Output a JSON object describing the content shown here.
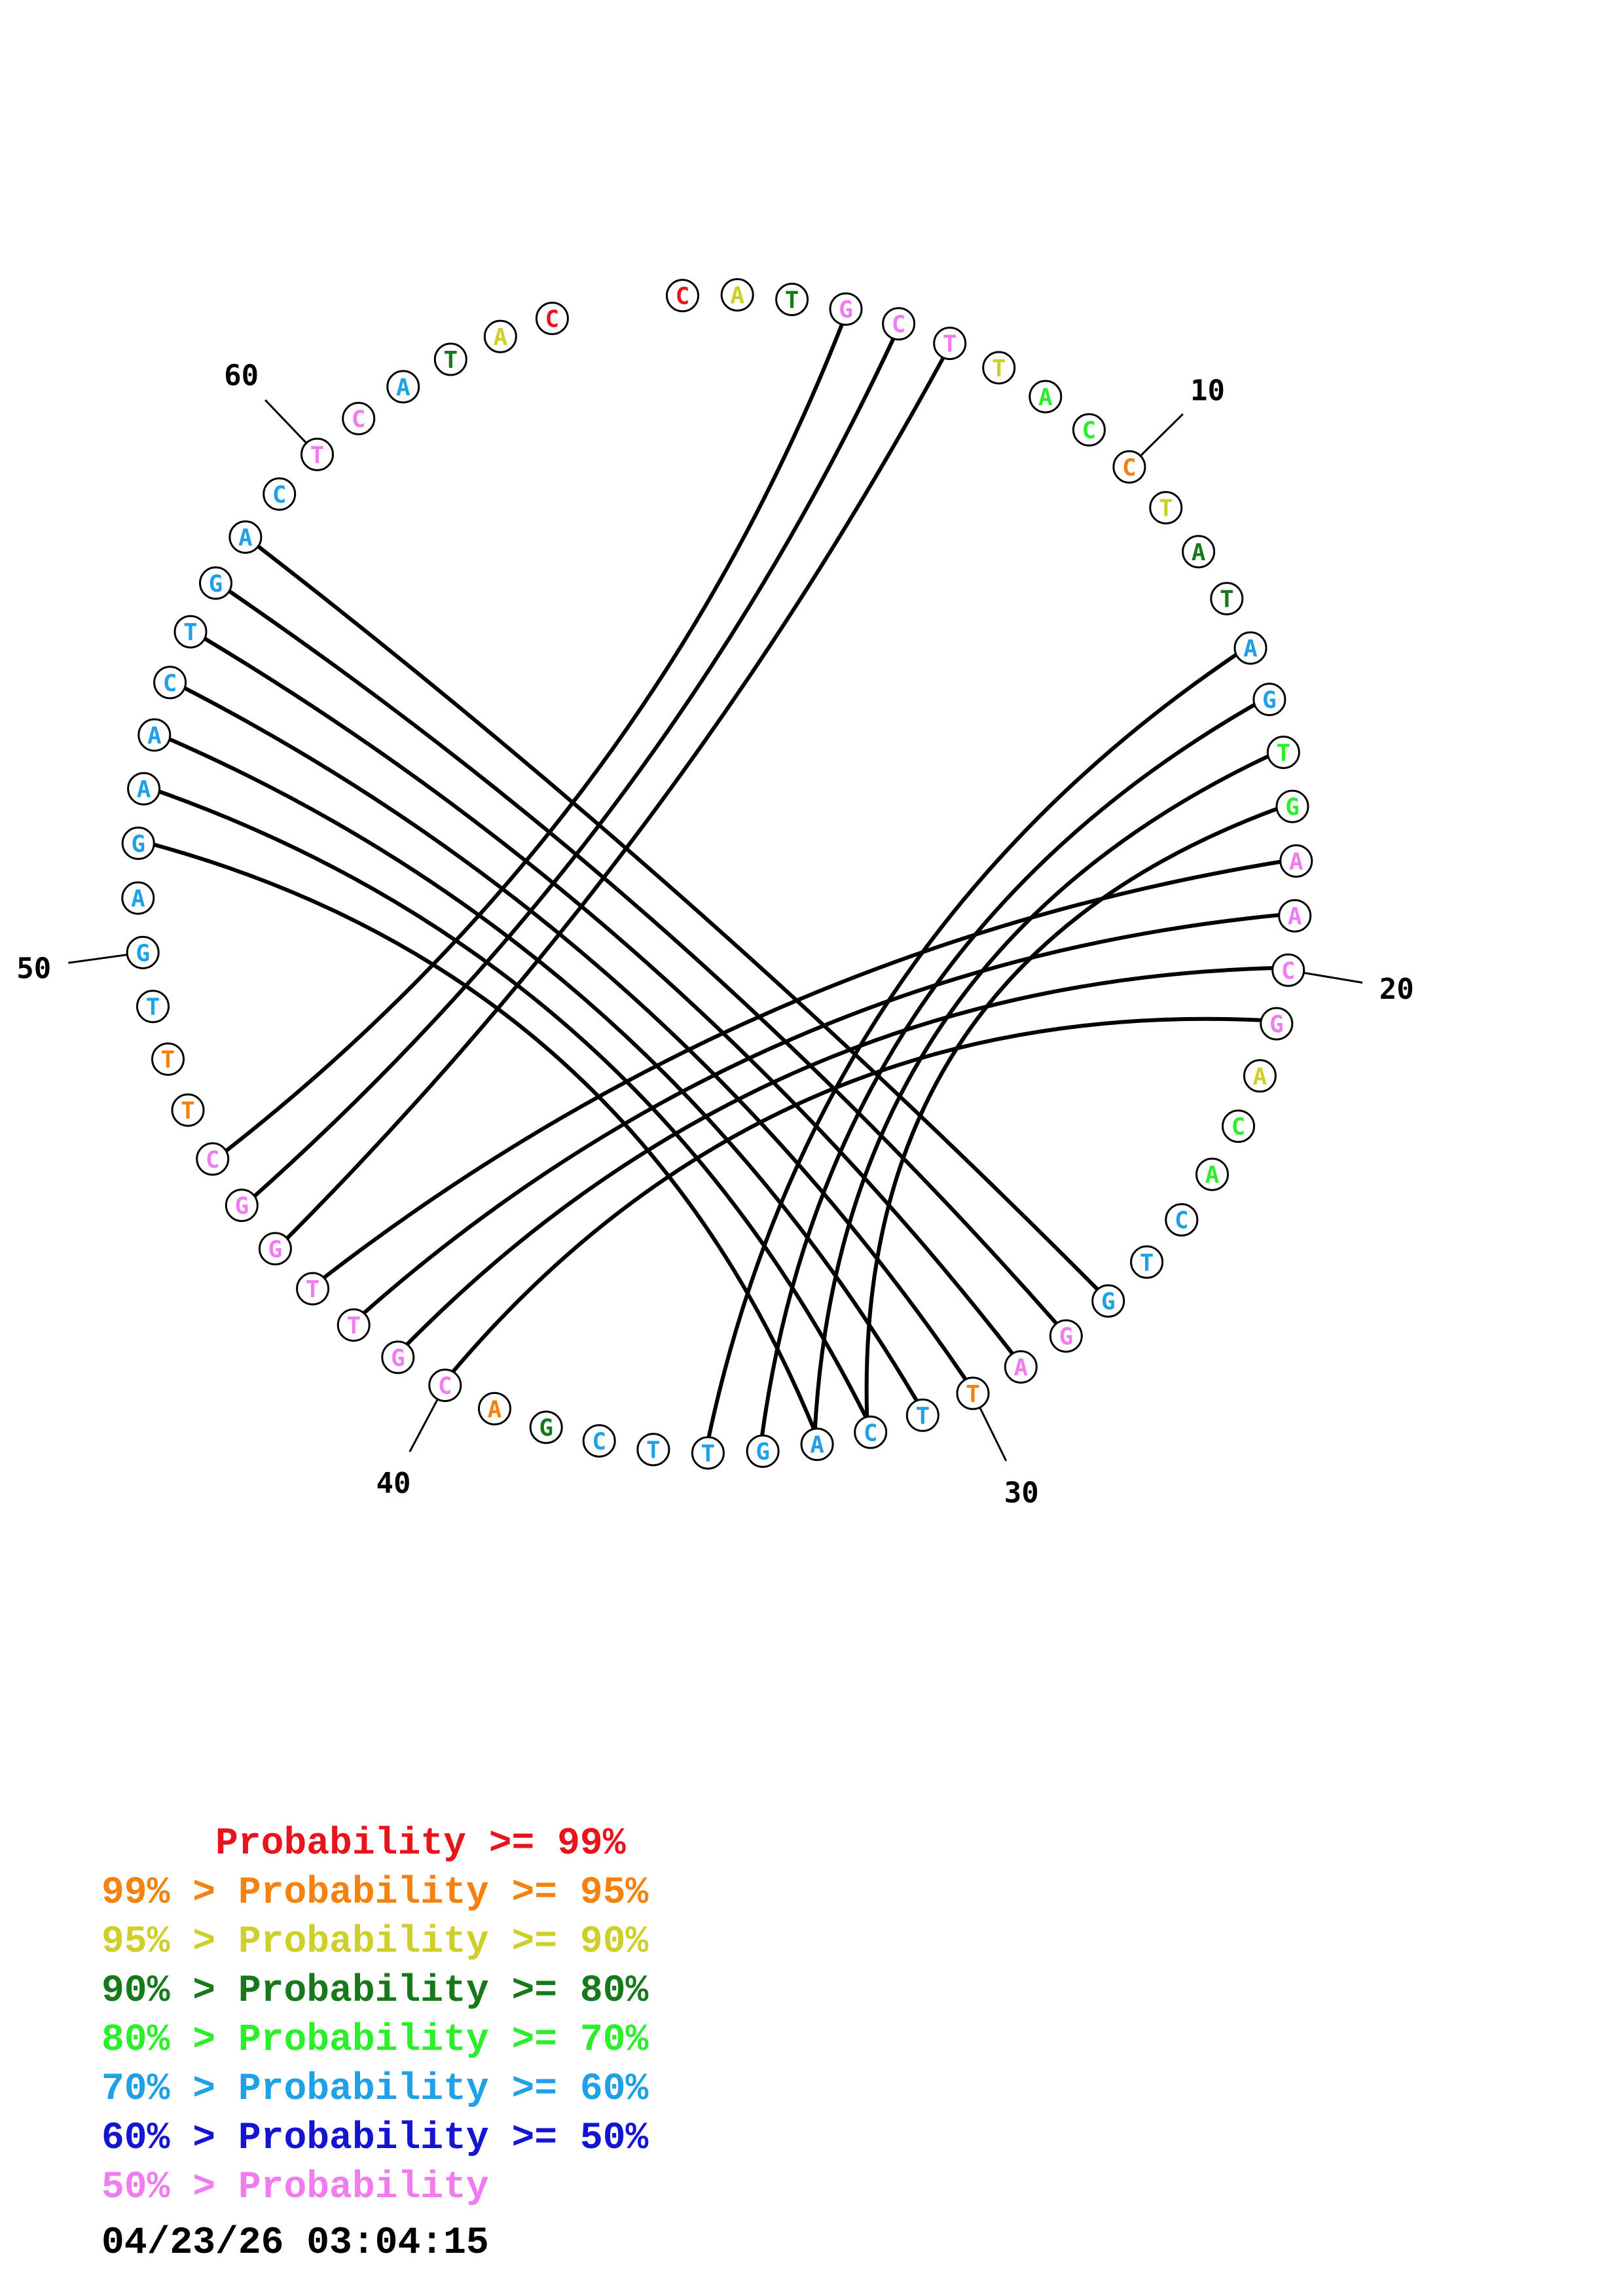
{
  "sequence": [
    {
      "base": "C",
      "level": 0
    },
    {
      "base": "A",
      "level": 2
    },
    {
      "base": "T",
      "level": 3
    },
    {
      "base": "G",
      "level": 7
    },
    {
      "base": "C",
      "level": 7
    },
    {
      "base": "T",
      "level": 7
    },
    {
      "base": "T",
      "level": 2
    },
    {
      "base": "A",
      "level": 4
    },
    {
      "base": "C",
      "level": 4
    },
    {
      "base": "C",
      "level": 1
    },
    {
      "base": "T",
      "level": 2
    },
    {
      "base": "A",
      "level": 3
    },
    {
      "base": "T",
      "level": 3
    },
    {
      "base": "A",
      "level": 5
    },
    {
      "base": "G",
      "level": 5
    },
    {
      "base": "T",
      "level": 4
    },
    {
      "base": "G",
      "level": 4
    },
    {
      "base": "A",
      "level": 7
    },
    {
      "base": "A",
      "level": 7
    },
    {
      "base": "C",
      "level": 7
    },
    {
      "base": "G",
      "level": 7
    },
    {
      "base": "A",
      "level": 2
    },
    {
      "base": "C",
      "level": 4
    },
    {
      "base": "A",
      "level": 4
    },
    {
      "base": "C",
      "level": 5
    },
    {
      "base": "T",
      "level": 5
    },
    {
      "base": "G",
      "level": 5
    },
    {
      "base": "G",
      "level": 7
    },
    {
      "base": "A",
      "level": 7
    },
    {
      "base": "T",
      "level": 1
    },
    {
      "base": "T",
      "level": 5
    },
    {
      "base": "C",
      "level": 5
    },
    {
      "base": "A",
      "level": 5
    },
    {
      "base": "G",
      "level": 5
    },
    {
      "base": "T",
      "level": 5
    },
    {
      "base": "T",
      "level": 5
    },
    {
      "base": "C",
      "level": 5
    },
    {
      "base": "G",
      "level": 3
    },
    {
      "base": "A",
      "level": 1
    },
    {
      "base": "C",
      "level": 7
    },
    {
      "base": "G",
      "level": 7
    },
    {
      "base": "T",
      "level": 7
    },
    {
      "base": "T",
      "level": 7
    },
    {
      "base": "G",
      "level": 7
    },
    {
      "base": "G",
      "level": 7
    },
    {
      "base": "C",
      "level": 7
    },
    {
      "base": "T",
      "level": 1
    },
    {
      "base": "T",
      "level": 1
    },
    {
      "base": "T",
      "level": 5
    },
    {
      "base": "G",
      "level": 5
    },
    {
      "base": "A",
      "level": 5
    },
    {
      "base": "G",
      "level": 5
    },
    {
      "base": "A",
      "level": 5
    },
    {
      "base": "A",
      "level": 5
    },
    {
      "base": "C",
      "level": 5
    },
    {
      "base": "T",
      "level": 5
    },
    {
      "base": "G",
      "level": 5
    },
    {
      "base": "A",
      "level": 5
    },
    {
      "base": "C",
      "level": 5
    },
    {
      "base": "T",
      "level": 7
    },
    {
      "base": "C",
      "level": 7
    },
    {
      "base": "A",
      "level": 5
    },
    {
      "base": "T",
      "level": 3
    },
    {
      "base": "A",
      "level": 2
    },
    {
      "base": "C",
      "level": 0
    }
  ],
  "pairs": [
    [
      4,
      46
    ],
    [
      5,
      45
    ],
    [
      6,
      44
    ],
    [
      14,
      35
    ],
    [
      15,
      34
    ],
    [
      16,
      33
    ],
    [
      17,
      32
    ],
    [
      18,
      43
    ],
    [
      19,
      42
    ],
    [
      20,
      41
    ],
    [
      21,
      40
    ],
    [
      27,
      58
    ],
    [
      28,
      57
    ],
    [
      29,
      56
    ],
    [
      30,
      55
    ],
    [
      31,
      54
    ],
    [
      32,
      53
    ],
    [
      33,
      52
    ]
  ],
  "number_labels": [
    {
      "index": 10,
      "text": "10"
    },
    {
      "index": 20,
      "text": "20"
    },
    {
      "index": 30,
      "text": "30"
    },
    {
      "index": 40,
      "text": "40"
    },
    {
      "index": 50,
      "text": "50"
    },
    {
      "index": 60,
      "text": "60"
    }
  ],
  "level_colors": [
    "#e8141b",
    "#f5820e",
    "#cfcf2c",
    "#16791a",
    "#2bef2b",
    "#20a0e6",
    "#1414d2",
    "#f07cf0"
  ],
  "legend": [
    {
      "text": "     Probability >= 99%",
      "color": "#e8141b"
    },
    {
      "text": "99% > Probability >= 95%",
      "color": "#f5820e"
    },
    {
      "text": "95% > Probability >= 90%",
      "color": "#cfcf2c"
    },
    {
      "text": "90% > Probability >= 80%",
      "color": "#16791a"
    },
    {
      "text": "80% > Probability >= 70%",
      "color": "#2bef2b"
    },
    {
      "text": "70% > Probability >= 60%",
      "color": "#20a0e6"
    },
    {
      "text": "60% > Probability >= 50%",
      "color": "#1414d2"
    },
    {
      "text": "50% > Probability",
      "color": "#f07cf0"
    }
  ],
  "timestamp": "04/23/26 03:04:15"
}
